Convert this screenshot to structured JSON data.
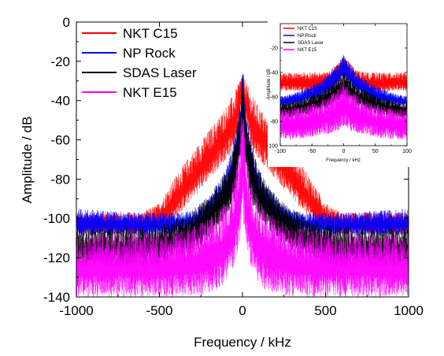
{
  "chart_data": [
    {
      "type": "line",
      "title": "",
      "xlabel": "Frequency / kHz",
      "ylabel": "Amplitude / dB",
      "xlim": [
        -1000,
        1000
      ],
      "ylim": [
        -140,
        0
      ],
      "x_ticks": [
        -1000,
        -500,
        0,
        500,
        1000
      ],
      "y_ticks": [
        0,
        -20,
        -40,
        -60,
        -80,
        -100,
        -120,
        -140
      ],
      "x_tick_labels": [
        "-1000",
        "-500",
        "0",
        "500",
        "1000"
      ],
      "y_tick_labels": [
        "0",
        "-20",
        "-40",
        "-60",
        "-80",
        "-100",
        "-120",
        "-140"
      ],
      "grid": false,
      "legend_position": "top-left",
      "series": [
        {
          "name": "NKT C15",
          "color": "#ff0000",
          "x": [
            -1000,
            -800,
            -600,
            -500,
            -400,
            -300,
            -200,
            -100,
            -50,
            -20,
            0,
            20,
            50,
            100,
            200,
            300,
            400,
            500,
            600,
            800,
            1000
          ],
          "upper": [
            -97,
            -97,
            -97,
            -92,
            -78,
            -66,
            -55,
            -43,
            -36,
            -30,
            -25,
            -30,
            -36,
            -43,
            -55,
            -66,
            -78,
            -92,
            -97,
            -97,
            -97
          ],
          "lower": [
            -108,
            -108,
            -108,
            -106,
            -100,
            -90,
            -80,
            -70,
            -65,
            -50,
            -42,
            -50,
            -65,
            -70,
            -80,
            -90,
            -100,
            -106,
            -108,
            -108,
            -108
          ]
        },
        {
          "name": "NP Rock",
          "color": "#0000ff",
          "x": [
            -1000,
            -800,
            -600,
            -500,
            -400,
            -300,
            -200,
            -100,
            -50,
            -20,
            0,
            20,
            50,
            100,
            200,
            300,
            400,
            500,
            600,
            800,
            1000
          ],
          "upper": [
            -95,
            -96,
            -97,
            -97,
            -97,
            -96,
            -90,
            -75,
            -60,
            -45,
            -23,
            -45,
            -60,
            -75,
            -90,
            -96,
            -97,
            -97,
            -97,
            -96,
            -95
          ],
          "lower": [
            -109,
            -109,
            -109,
            -109,
            -108,
            -106,
            -102,
            -94,
            -82,
            -68,
            -55,
            -68,
            -82,
            -94,
            -102,
            -106,
            -108,
            -109,
            -109,
            -109,
            -109
          ]
        },
        {
          "name": "SDAS Laser",
          "color": "#000000",
          "x": [
            -1000,
            -800,
            -600,
            -500,
            -400,
            -300,
            -200,
            -100,
            -50,
            -20,
            0,
            20,
            50,
            100,
            200,
            300,
            400,
            500,
            600,
            800,
            1000
          ],
          "upper": [
            -105,
            -105,
            -104,
            -103,
            -100,
            -95,
            -88,
            -75,
            -62,
            -48,
            -25,
            -48,
            -62,
            -75,
            -88,
            -95,
            -100,
            -103,
            -104,
            -105,
            -105
          ],
          "lower": [
            -125,
            -125,
            -125,
            -124,
            -120,
            -118,
            -110,
            -100,
            -92,
            -75,
            -60,
            -75,
            -92,
            -100,
            -110,
            -118,
            -120,
            -124,
            -125,
            -125,
            -125
          ]
        },
        {
          "name": "NKT E15",
          "color": "#ff00ff",
          "x": [
            -1000,
            -800,
            -600,
            -500,
            -400,
            -300,
            -200,
            -100,
            -50,
            -20,
            0,
            20,
            50,
            100,
            200,
            300,
            400,
            500,
            600,
            800,
            1000
          ],
          "upper": [
            -108,
            -108,
            -107,
            -107,
            -106,
            -104,
            -100,
            -90,
            -80,
            -65,
            -35,
            -65,
            -80,
            -90,
            -100,
            -104,
            -106,
            -107,
            -107,
            -108,
            -108
          ],
          "lower": [
            -140,
            -140,
            -140,
            -140,
            -140,
            -140,
            -138,
            -135,
            -125,
            -115,
            -100,
            -115,
            -125,
            -135,
            -138,
            -140,
            -140,
            -140,
            -140,
            -140,
            -140
          ]
        }
      ]
    },
    {
      "type": "line",
      "title": "",
      "xlabel": "Frequency / kHz",
      "ylabel": "Amplitude / dB",
      "xlim": [
        -100,
        100
      ],
      "ylim": [
        -100,
        0
      ],
      "x_ticks": [
        -100,
        -50,
        0,
        50,
        100
      ],
      "y_ticks": [
        -20,
        -40,
        -60,
        -80,
        -100
      ],
      "x_tick_labels": [
        "-100",
        "-50",
        "0",
        "50",
        "100"
      ],
      "y_tick_labels": [
        "-20",
        "-40",
        "-60",
        "-80",
        "-100"
      ],
      "grid": false,
      "legend_position": "top-left",
      "series": [
        {
          "name": "NKT C15",
          "color": "#ff0000",
          "x": [
            -100,
            -80,
            -60,
            -40,
            -20,
            -10,
            0,
            10,
            20,
            40,
            60,
            80,
            100
          ],
          "upper": [
            -40,
            -40,
            -40,
            -40,
            -38,
            -32,
            -27,
            -32,
            -38,
            -40,
            -40,
            -40,
            -40
          ],
          "lower": [
            -55,
            -55,
            -56,
            -56,
            -54,
            -48,
            -42,
            -48,
            -54,
            -56,
            -56,
            -55,
            -55
          ]
        },
        {
          "name": "NP Rock",
          "color": "#0000ff",
          "x": [
            -100,
            -80,
            -60,
            -40,
            -20,
            -10,
            0,
            10,
            20,
            40,
            60,
            80,
            100
          ],
          "upper": [
            -60,
            -57,
            -53,
            -48,
            -40,
            -33,
            -25,
            -33,
            -40,
            -48,
            -53,
            -57,
            -60
          ],
          "lower": [
            -68,
            -67,
            -65,
            -62,
            -56,
            -50,
            -45,
            -50,
            -56,
            -62,
            -65,
            -67,
            -68
          ]
        },
        {
          "name": "SDAS Laser",
          "color": "#000000",
          "x": [
            -100,
            -80,
            -60,
            -40,
            -20,
            -10,
            0,
            10,
            20,
            40,
            60,
            80,
            100
          ],
          "upper": [
            -65,
            -63,
            -60,
            -56,
            -50,
            -45,
            -40,
            -45,
            -50,
            -56,
            -60,
            -63,
            -65
          ],
          "lower": [
            -78,
            -77,
            -75,
            -72,
            -68,
            -64,
            -60,
            -64,
            -68,
            -72,
            -75,
            -77,
            -78
          ]
        },
        {
          "name": "NKT E15",
          "color": "#ff00ff",
          "x": [
            -100,
            -80,
            -60,
            -40,
            -20,
            -10,
            0,
            10,
            20,
            40,
            60,
            80,
            100
          ],
          "upper": [
            -70,
            -69,
            -67,
            -64,
            -58,
            -54,
            -45,
            -54,
            -58,
            -64,
            -67,
            -69,
            -70
          ],
          "lower": [
            -95,
            -95,
            -94,
            -92,
            -90,
            -88,
            -85,
            -88,
            -90,
            -92,
            -94,
            -95,
            -95
          ]
        }
      ]
    }
  ]
}
